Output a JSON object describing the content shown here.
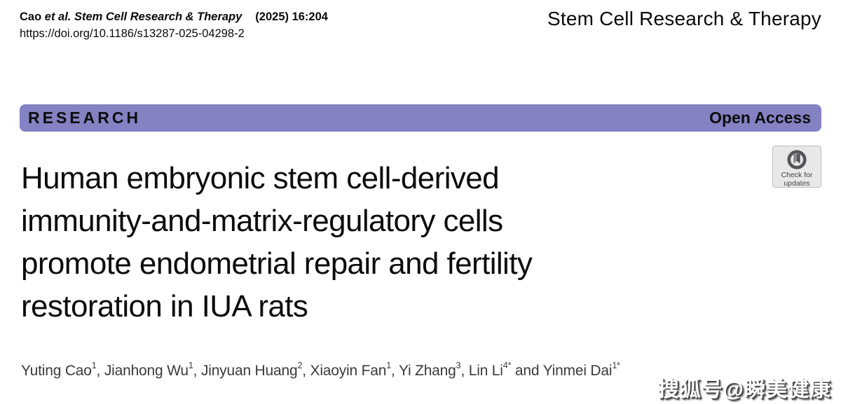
{
  "masthead": {
    "citation": {
      "authors_short": "Cao",
      "journal_italic": "et al. Stem Cell Research & Therapy",
      "issue": "(2025) 16:204",
      "doi": "https://doi.org/10.1186/s13287-025-04298-2"
    },
    "journal_name": "Stem Cell Research & Therapy"
  },
  "banner": {
    "type_label": "RESEARCH",
    "access_label": "Open Access",
    "color": "#8482c3"
  },
  "check_updates": {
    "line1": "Check for",
    "line2": "updates",
    "badge_bg": "#e8e8e9",
    "ring_color": "#55565a",
    "bookmark_light": "#87898c",
    "bookmark_dark": "#55565a"
  },
  "title": {
    "lines": [
      "Human embryonic stem cell-derived",
      "immunity-and-matrix-regulatory cells",
      "promote endometrial repair and fertility",
      "restoration in IUA rats"
    ]
  },
  "authors": {
    "list": [
      {
        "name": "Yuting Cao",
        "sup": "1",
        "sep": ", "
      },
      {
        "name": "Jianhong Wu",
        "sup": "1",
        "sep": ", "
      },
      {
        "name": "Jinyuan Huang",
        "sup": "2",
        "sep": ", "
      },
      {
        "name": "Xiaoyin Fan",
        "sup": "1",
        "sep": ", "
      },
      {
        "name": "Yi Zhang",
        "sup": "3",
        "sep": ", "
      },
      {
        "name": "Lin Li",
        "sup": "4*",
        "sep": " and "
      },
      {
        "name": "Yinmei Dai",
        "sup": "1*",
        "sep": ""
      }
    ]
  },
  "watermark": {
    "text": "搜狐号@瞬美健康"
  }
}
